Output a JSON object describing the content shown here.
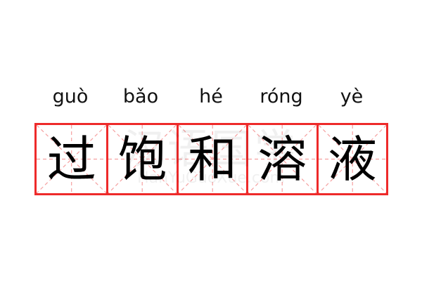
{
  "colors": {
    "grid_border": "#ee2a2a",
    "guide_lines": "#f5a0a0",
    "text": "#000000"
  },
  "words": [
    {
      "pinyin": "guò",
      "hanzi": "过"
    },
    {
      "pinyin": "bǎo",
      "hanzi": "饱"
    },
    {
      "pinyin": "hé",
      "hanzi": "和"
    },
    {
      "pinyin": "róng",
      "hanzi": "溶"
    },
    {
      "pinyin": "yè",
      "hanzi": "液"
    }
  ],
  "watermark": {
    "cn": "汉语国学",
    "en": "HanYuGuoXue.com"
  }
}
